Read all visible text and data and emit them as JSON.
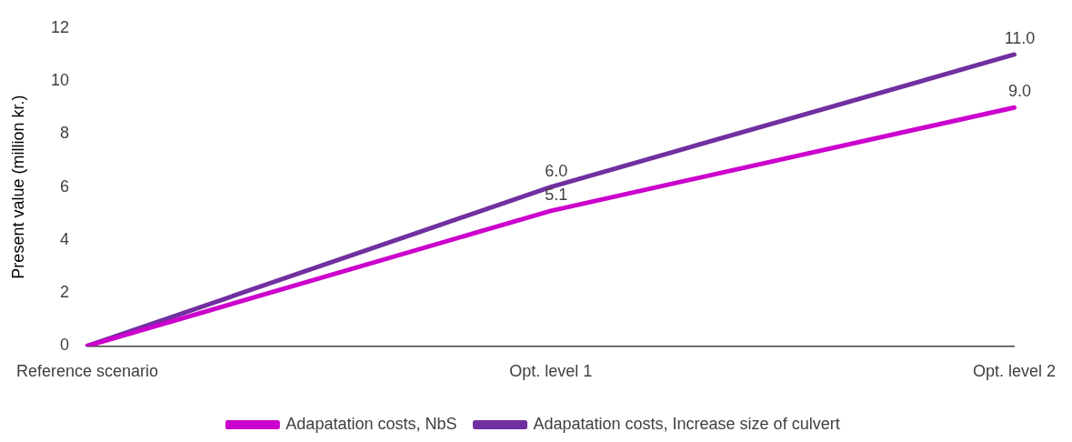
{
  "chart_data": {
    "type": "line",
    "ylabel": "Present value (million kr.)",
    "categories": [
      "Reference scenario",
      "Opt. level 1",
      "Opt. level 2"
    ],
    "series": [
      {
        "name": "Adapatation costs, NbS",
        "color": "#cc00cc",
        "values": [
          0,
          5.1,
          9.0
        ],
        "value_labels": [
          null,
          "5.1",
          "9.0"
        ]
      },
      {
        "name": "Adapatation costs, Increase size of culvert",
        "color": "#7030a0",
        "values": [
          0,
          6.0,
          11.0
        ],
        "value_labels": [
          null,
          "6.0",
          "11.0"
        ]
      }
    ],
    "ylim": [
      0,
      12
    ],
    "yticks": [
      0,
      2,
      4,
      6,
      8,
      10,
      12
    ],
    "grid": false,
    "legend": "bottom",
    "marker": "none"
  }
}
